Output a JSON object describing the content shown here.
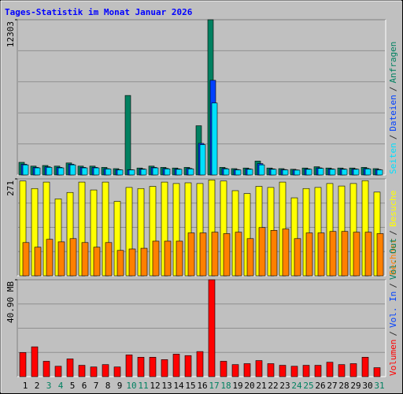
{
  "chart_data": [
    {
      "type": "bar",
      "title": "Tages-Statistik im Monat Januar 2026",
      "title_color": "#0000ff",
      "legend_separator": "/",
      "ylim": [
        0,
        12303
      ],
      "yticks": [
        12303
      ],
      "series": [
        {
          "name": "Anfragen",
          "color": "#008060",
          "values": [
            1000,
            700,
            750,
            700,
            950,
            700,
            700,
            600,
            500,
            6300,
            550,
            700,
            600,
            550,
            600,
            3900,
            12303,
            600,
            500,
            550,
            1100,
            550,
            500,
            450,
            550,
            650,
            550,
            550,
            550,
            600,
            500
          ]
        },
        {
          "name": "Dateien",
          "color": "#0040ff",
          "values": [
            850,
            600,
            650,
            600,
            850,
            600,
            600,
            500,
            420,
            420,
            480,
            600,
            520,
            480,
            520,
            2500,
            7500,
            520,
            430,
            480,
            900,
            480,
            430,
            400,
            480,
            560,
            480,
            480,
            480,
            520,
            430
          ]
        },
        {
          "name": "Seiten",
          "color": "#00e0ff",
          "values": [
            800,
            560,
            600,
            560,
            800,
            560,
            560,
            470,
            400,
            400,
            450,
            560,
            480,
            450,
            480,
            2400,
            5700,
            480,
            400,
            450,
            800,
            450,
            400,
            380,
            450,
            520,
            450,
            450,
            450,
            480,
            400
          ]
        }
      ]
    },
    {
      "type": "bar",
      "ylim": [
        0,
        271
      ],
      "yticks": [
        271
      ],
      "series": [
        {
          "name": "Besuche",
          "color": "#ffff00",
          "values": [
            265,
            244,
            262,
            215,
            233,
            262,
            240,
            262,
            208,
            247,
            244,
            250,
            262,
            258,
            260,
            258,
            268,
            265,
            238,
            230,
            250,
            247,
            262,
            218,
            244,
            247,
            258,
            251,
            258,
            266,
            234
          ]
        },
        {
          "name": "Rechner",
          "color": "#ff8000",
          "values": [
            93,
            80,
            102,
            95,
            104,
            93,
            80,
            93,
            71,
            75,
            77,
            97,
            97,
            97,
            120,
            120,
            122,
            118,
            122,
            104,
            135,
            127,
            131,
            104,
            120,
            120,
            124,
            124,
            122,
            122,
            118
          ]
        }
      ]
    },
    {
      "type": "bar",
      "ylim": [
        0,
        40.9
      ],
      "yticks": [
        {
          "value": 40.9,
          "label": "40.90 MB"
        }
      ],
      "categories": [
        "1",
        "2",
        "3",
        "4",
        "5",
        "6",
        "7",
        "8",
        "9",
        "10",
        "11",
        "12",
        "13",
        "14",
        "15",
        "16",
        "17",
        "18",
        "19",
        "20",
        "21",
        "22",
        "23",
        "24",
        "25",
        "26",
        "27",
        "28",
        "29",
        "30",
        "31"
      ],
      "weekend": [
        false,
        false,
        true,
        true,
        false,
        false,
        false,
        false,
        false,
        true,
        true,
        false,
        false,
        false,
        false,
        false,
        true,
        true,
        false,
        false,
        false,
        false,
        false,
        true,
        true,
        false,
        false,
        false,
        false,
        false,
        true
      ],
      "weekend_color": "#008060",
      "series": [
        {
          "name": "Vol. Out",
          "color": "#008060",
          "values": [
            null,
            null,
            null,
            null,
            null,
            null,
            null,
            null,
            null,
            null,
            null,
            null,
            null,
            null,
            null,
            null,
            null,
            null,
            null,
            null,
            null,
            null,
            null,
            null,
            null,
            null,
            null,
            null,
            null,
            null,
            null
          ]
        },
        {
          "name": "Vol. In",
          "color": "#0040ff",
          "values": [
            null,
            null,
            null,
            null,
            null,
            null,
            null,
            null,
            null,
            null,
            null,
            null,
            null,
            null,
            null,
            null,
            null,
            null,
            null,
            null,
            null,
            null,
            null,
            null,
            null,
            null,
            null,
            null,
            null,
            null,
            null
          ]
        },
        {
          "name": "Volumen",
          "color": "#ff0000",
          "values": [
            10.2,
            12.6,
            6.5,
            4.4,
            7.5,
            4.8,
            4.1,
            5.1,
            4.1,
            9.2,
            8.2,
            8.2,
            7.2,
            9.5,
            8.9,
            10.6,
            40.9,
            6.5,
            5.1,
            5.5,
            6.8,
            5.5,
            4.8,
            4.4,
            4.8,
            4.8,
            6.1,
            5.1,
            5.5,
            8.2,
            3.8
          ]
        }
      ]
    }
  ]
}
